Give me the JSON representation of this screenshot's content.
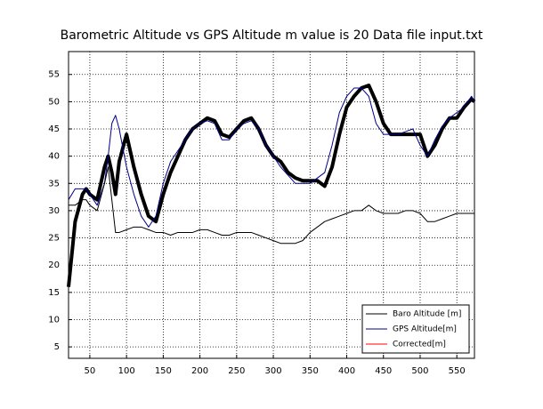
{
  "chart_data": {
    "type": "line",
    "title": "Barometric Altitude vs GPS Altitude m value is 20 Data file input.txt",
    "x": [
      21,
      30,
      40,
      45,
      50,
      60,
      70,
      75,
      80,
      85,
      90,
      100,
      110,
      120,
      130,
      140,
      150,
      160,
      170,
      180,
      190,
      200,
      210,
      220,
      230,
      240,
      250,
      260,
      270,
      280,
      290,
      300,
      310,
      320,
      330,
      340,
      350,
      360,
      370,
      380,
      390,
      400,
      410,
      420,
      430,
      440,
      450,
      460,
      470,
      480,
      490,
      500,
      510,
      520,
      530,
      540,
      550,
      560,
      570,
      574
    ],
    "series": [
      {
        "name": "Baro Altitude [m]",
        "color": "#000000",
        "line_width": 4,
        "values": [
          16,
          28,
          33,
          34,
          33,
          32,
          38,
          40,
          37,
          33,
          39,
          44,
          38,
          33,
          29,
          28,
          33,
          37,
          40,
          43,
          45,
          46,
          47,
          46.5,
          44,
          43.5,
          45,
          46.5,
          47,
          45,
          42,
          40,
          39,
          37,
          36,
          35.5,
          35.5,
          35.5,
          34.5,
          38,
          44,
          49,
          51,
          52.5,
          53,
          50,
          46,
          44,
          44,
          44,
          44,
          44,
          40,
          42,
          45,
          47,
          47,
          49,
          50.5,
          50
        ]
      },
      {
        "name": "GPS Altitude[m]",
        "color": "#00008b",
        "line_width": 1,
        "values": [
          32,
          34,
          34,
          34,
          33,
          31,
          35,
          40,
          46,
          47.5,
          45,
          38,
          33,
          29,
          27,
          29,
          35,
          39,
          41,
          43,
          45,
          46,
          46.5,
          46,
          43,
          43,
          45,
          46,
          46.5,
          45,
          42,
          40,
          38,
          36.5,
          35,
          35,
          35,
          36,
          37,
          42,
          48,
          51,
          52.5,
          52.5,
          51,
          46,
          44,
          44,
          44,
          44.5,
          45,
          42,
          40,
          43,
          45.5,
          47,
          48,
          49,
          51,
          50
        ]
      },
      {
        "name": "Corrected[m]",
        "color": "#000000",
        "legend_color": "#ff0000",
        "line_width": 1,
        "values": [
          31,
          31,
          32,
          32,
          31,
          30,
          35,
          38,
          32,
          26,
          26,
          26.5,
          27,
          27,
          26.5,
          26,
          26,
          25.5,
          26,
          26,
          26,
          26.5,
          26.5,
          26,
          25.5,
          25.5,
          26,
          26,
          26,
          25.5,
          25,
          24.5,
          24,
          24,
          24,
          24.5,
          26,
          27,
          28,
          28.5,
          29,
          29.5,
          30,
          30,
          31,
          30,
          29.5,
          29.5,
          29.5,
          30,
          30,
          29.5,
          28,
          28,
          28.5,
          29,
          29.5,
          29.5,
          29.5,
          29.5
        ]
      }
    ],
    "xlim": [
      21,
      574
    ],
    "xticks": [
      50,
      100,
      150,
      200,
      250,
      300,
      350,
      400,
      450,
      500,
      550
    ],
    "ylim": [
      2.9,
      59.2
    ],
    "yticks": [
      5,
      10,
      15,
      20,
      25,
      30,
      35,
      40,
      45,
      50,
      55
    ],
    "grid": true,
    "legend": "lower right"
  }
}
